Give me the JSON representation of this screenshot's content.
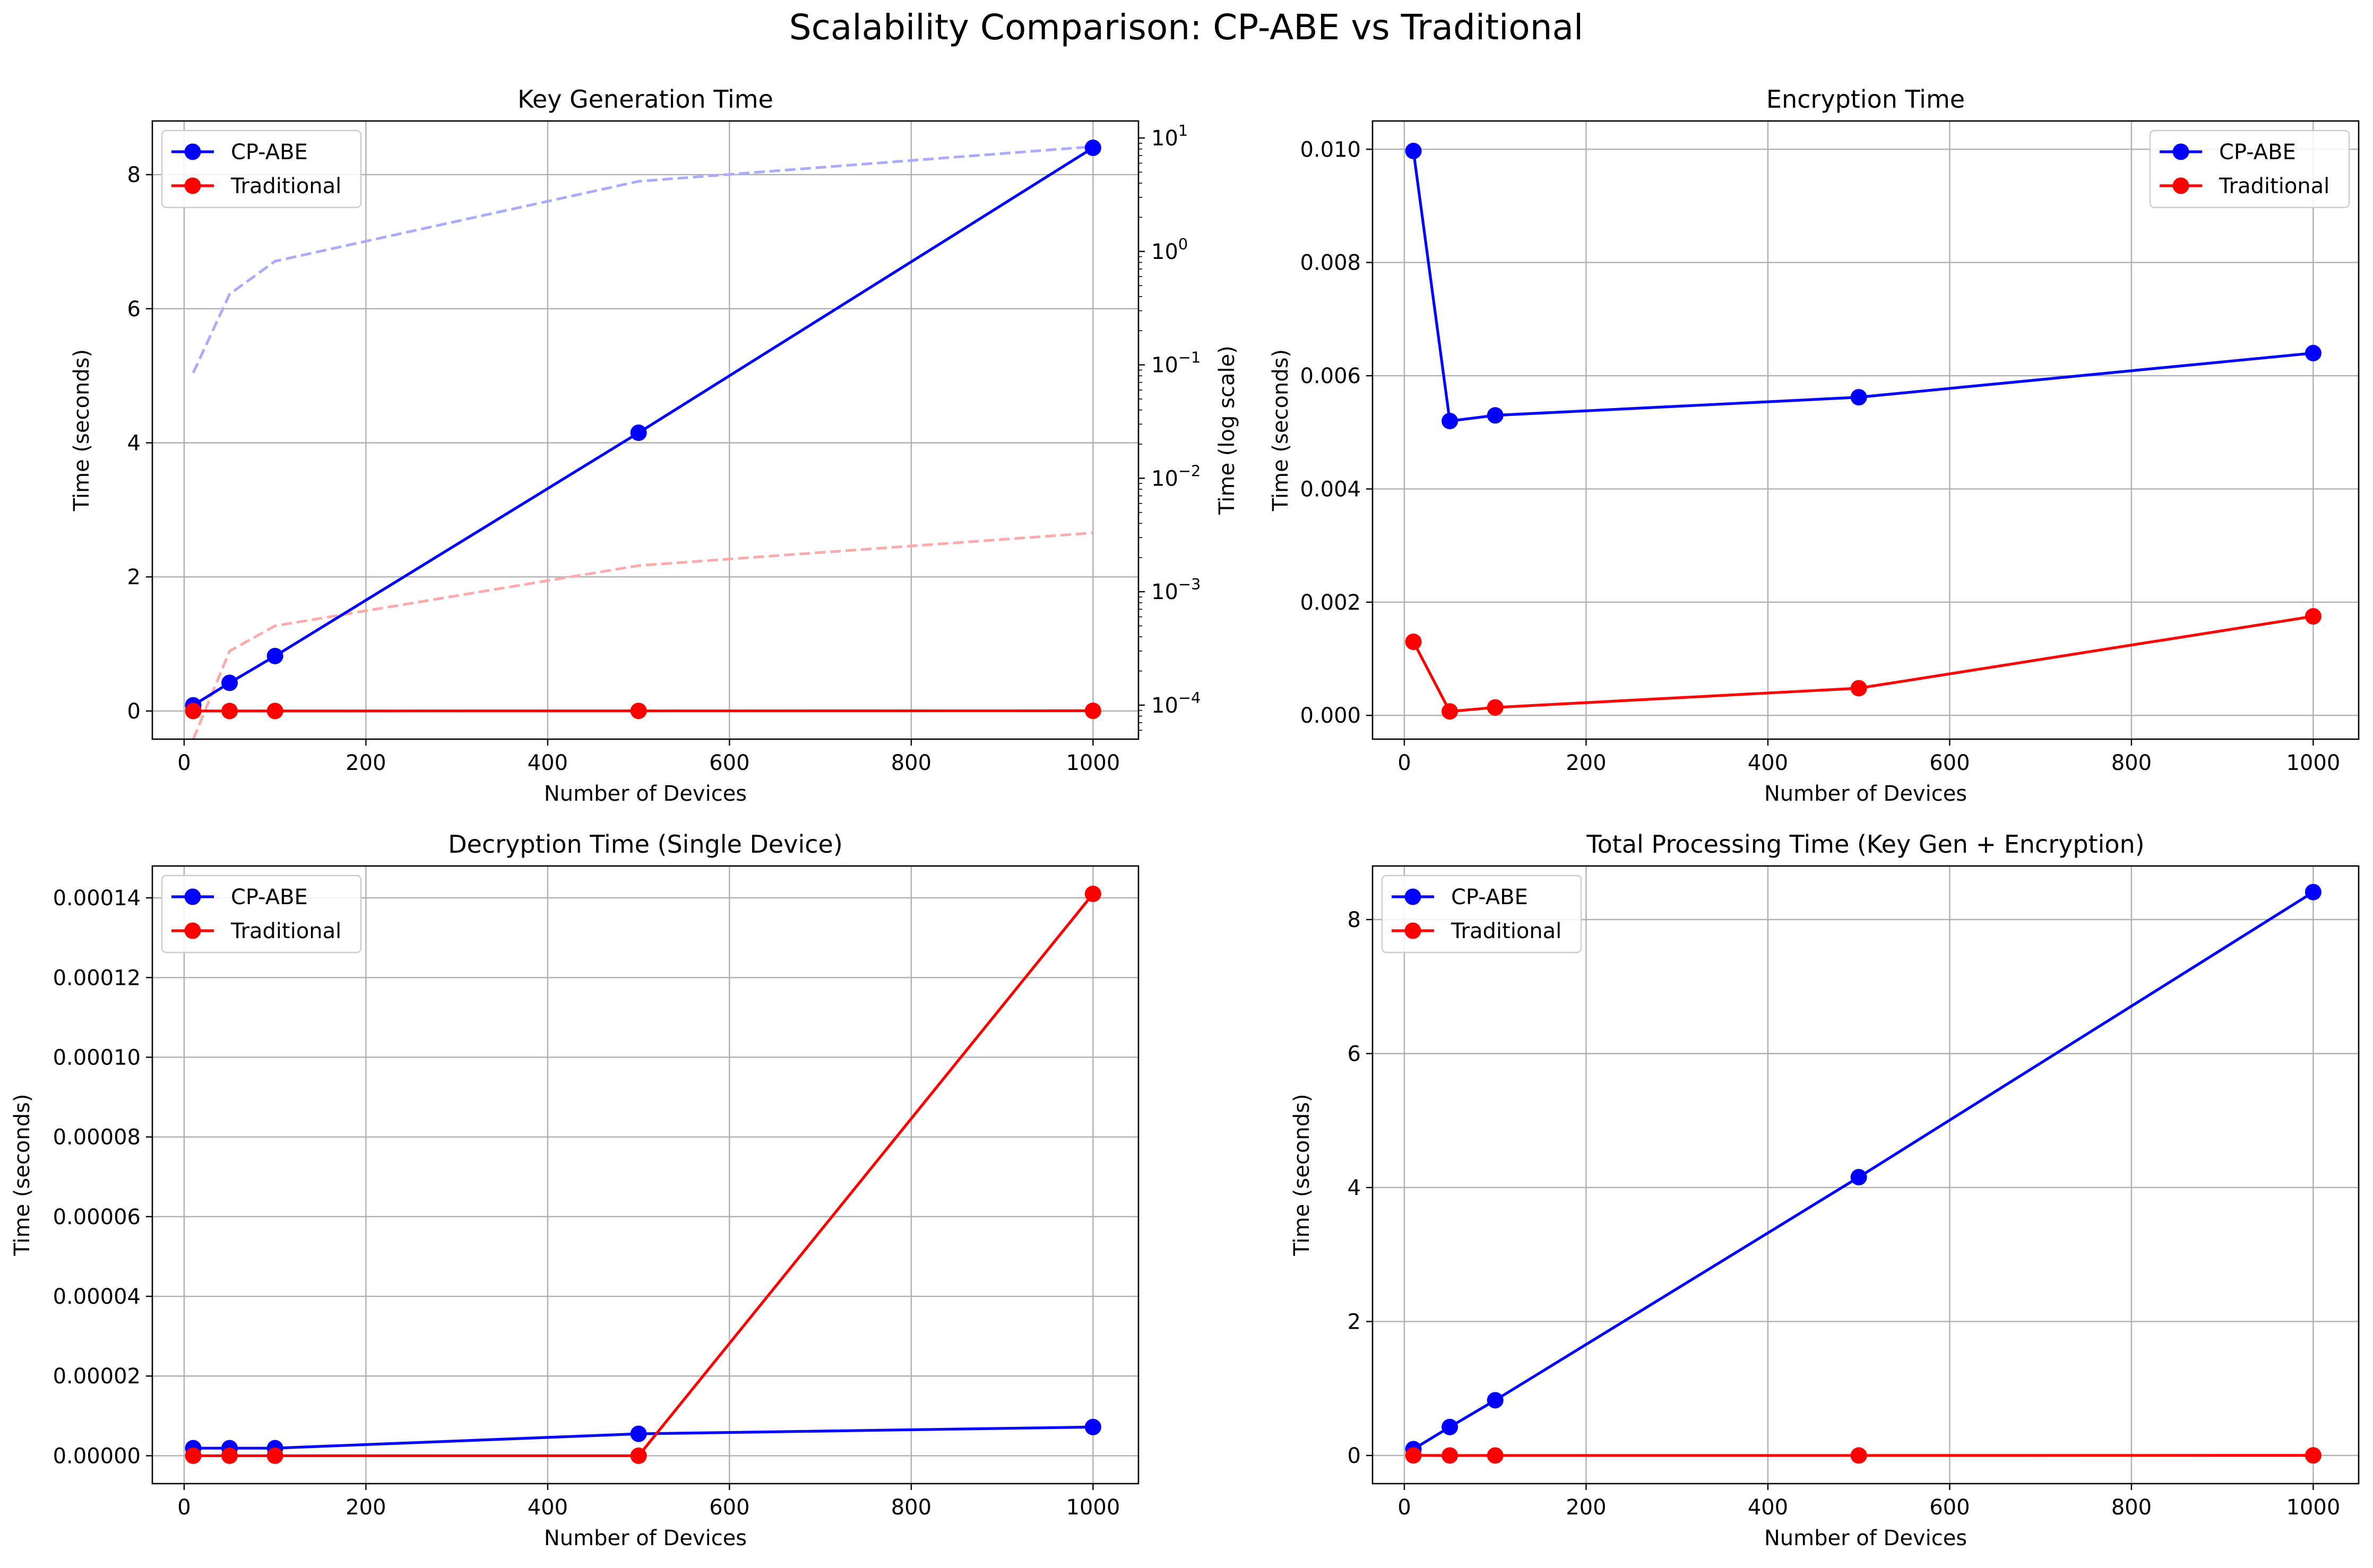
{
  "figure_title": "Scalability Comparison: CP-ABE vs Traditional",
  "colors": {
    "cpabe": "#0000ff",
    "traditional": "#ff0000",
    "cpabe_log": "#aaaaff",
    "traditional_log": "#ffaaaa",
    "grid": "#b0b0b0"
  },
  "chart_data": [
    {
      "id": "keygen",
      "type": "line",
      "title": "Key Generation Time",
      "xlabel": "Number of Devices",
      "ylabel": "Time (seconds)",
      "y2label": "Time (log scale)",
      "x": [
        10,
        50,
        100,
        500,
        1000
      ],
      "xlim": [
        -35,
        1050
      ],
      "ylim": [
        -0.42,
        8.8
      ],
      "xticks": [
        0,
        200,
        400,
        600,
        800,
        1000
      ],
      "xtick_labels": [
        "0",
        "200",
        "400",
        "600",
        "800",
        "1000"
      ],
      "yticks": [
        0,
        2,
        4,
        6,
        8
      ],
      "ytick_labels": [
        "0",
        "2",
        "4",
        "6",
        "8"
      ],
      "grid": true,
      "legend": "upper-left",
      "series": [
        {
          "name": "CP-ABE",
          "color_key": "cpabe",
          "values": [
            0.085,
            0.42,
            0.82,
            4.15,
            8.4
          ]
        },
        {
          "name": "Traditional",
          "color_key": "traditional",
          "values": [
            5e-05,
            0.0003,
            0.0005,
            0.0017,
            0.0033
          ]
        }
      ],
      "secondary_axis": {
        "scale": "log",
        "ylim_log10": [
          -4.3,
          1.15
        ],
        "ticks_log10": [
          -4,
          -3,
          -2,
          -1,
          0,
          1
        ],
        "tick_exponents": [
          "−4",
          "−3",
          "−2",
          "−1",
          "0",
          "1"
        ],
        "tick_base": "10",
        "series": [
          {
            "color_key": "cpabe_log",
            "values": [
              0.085,
              0.42,
              0.82,
              4.15,
              8.4
            ]
          },
          {
            "color_key": "traditional_log",
            "values": [
              5e-05,
              0.0003,
              0.0005,
              0.0017,
              0.0033
            ]
          }
        ]
      }
    },
    {
      "id": "encryption",
      "type": "line",
      "title": "Encryption Time",
      "xlabel": "Number of Devices",
      "ylabel": "Time (seconds)",
      "x": [
        10,
        50,
        100,
        500,
        1000
      ],
      "xlim": [
        -35,
        1050
      ],
      "ylim": [
        -0.00042,
        0.0105
      ],
      "xticks": [
        0,
        200,
        400,
        600,
        800,
        1000
      ],
      "xtick_labels": [
        "0",
        "200",
        "400",
        "600",
        "800",
        "1000"
      ],
      "yticks": [
        0,
        0.002,
        0.004,
        0.006,
        0.008,
        0.01
      ],
      "ytick_labels": [
        "0.000",
        "0.002",
        "0.004",
        "0.006",
        "0.008",
        "0.010"
      ],
      "grid": true,
      "legend": "upper-right",
      "series": [
        {
          "name": "CP-ABE",
          "color_key": "cpabe",
          "values": [
            0.00997,
            0.0052,
            0.0053,
            0.00562,
            0.0064
          ]
        },
        {
          "name": "Traditional",
          "color_key": "traditional",
          "values": [
            0.0013,
            7e-05,
            0.00014,
            0.00048,
            0.00175
          ]
        }
      ]
    },
    {
      "id": "decryption",
      "type": "line",
      "title": "Decryption Time (Single Device)",
      "xlabel": "Number of Devices",
      "ylabel": "Time (seconds)",
      "x": [
        10,
        50,
        100,
        500,
        1000
      ],
      "xlim": [
        -35,
        1050
      ],
      "ylim": [
        -7e-06,
        0.000148
      ],
      "xticks": [
        0,
        200,
        400,
        600,
        800,
        1000
      ],
      "xtick_labels": [
        "0",
        "200",
        "400",
        "600",
        "800",
        "1000"
      ],
      "yticks": [
        0,
        2e-05,
        4e-05,
        6e-05,
        8e-05,
        0.0001,
        0.00012,
        0.00014
      ],
      "ytick_labels": [
        "0.00000",
        "0.00002",
        "0.00004",
        "0.00006",
        "0.00008",
        "0.00010",
        "0.00012",
        "0.00014"
      ],
      "grid": true,
      "legend": "upper-left",
      "series": [
        {
          "name": "CP-ABE",
          "color_key": "cpabe",
          "values": [
            1.9e-06,
            1.9e-06,
            1.9e-06,
            5.5e-06,
            7.2e-06
          ]
        },
        {
          "name": "Traditional",
          "color_key": "traditional",
          "values": [
            0.0,
            0.0,
            0.0,
            0.0,
            0.000141
          ]
        }
      ]
    },
    {
      "id": "total",
      "type": "line",
      "title": "Total Processing Time (Key Gen + Encryption)",
      "xlabel": "Number of Devices",
      "ylabel": "Time (seconds)",
      "x": [
        10,
        50,
        100,
        500,
        1000
      ],
      "xlim": [
        -35,
        1050
      ],
      "ylim": [
        -0.42,
        8.8
      ],
      "xticks": [
        0,
        200,
        400,
        600,
        800,
        1000
      ],
      "xtick_labels": [
        "0",
        "200",
        "400",
        "600",
        "800",
        "1000"
      ],
      "yticks": [
        0,
        2,
        4,
        6,
        8
      ],
      "ytick_labels": [
        "0",
        "2",
        "4",
        "6",
        "8"
      ],
      "grid": true,
      "legend": "upper-left",
      "series": [
        {
          "name": "CP-ABE",
          "color_key": "cpabe",
          "values": [
            0.095,
            0.425,
            0.825,
            4.155,
            8.41
          ]
        },
        {
          "name": "Traditional",
          "color_key": "traditional",
          "values": [
            0.0013,
            0.0001,
            0.0002,
            0.0005,
            0.0018
          ]
        }
      ]
    }
  ]
}
